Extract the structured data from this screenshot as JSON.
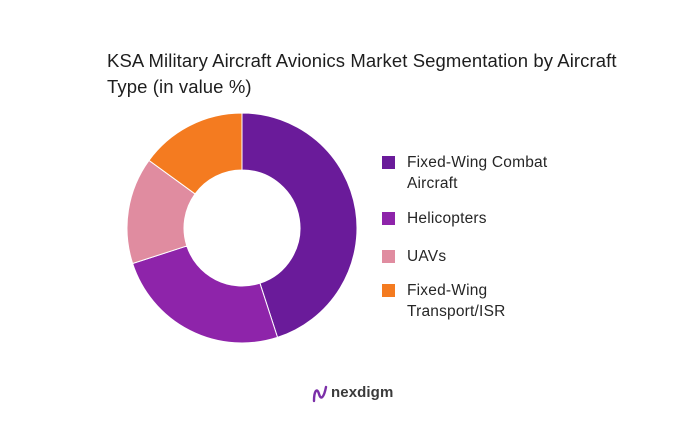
{
  "chart_data": {
    "type": "pie",
    "title": "KSA Military Aircraft Avionics Market Segmentation by Aircraft Type (in value %)",
    "categories": [
      "Fixed-Wing Combat Aircraft",
      "Helicopters",
      "UAVs",
      "Fixed-Wing Transport/ISR"
    ],
    "values": [
      45,
      25,
      15,
      15
    ],
    "colors": [
      "#6a1b9a",
      "#8e24aa",
      "#e08ca0",
      "#f47b20"
    ],
    "legend_labels": [
      [
        "Fixed-Wing Combat",
        "Aircraft"
      ],
      [
        "Helicopters"
      ],
      [
        "UAVs"
      ],
      [
        "Fixed-Wing",
        "Transport/ISR"
      ]
    ],
    "legend_position": "right"
  },
  "brand": {
    "name": "nexdigm",
    "icon": "nexdigm-logo-icon",
    "color": "#7b2fa8"
  }
}
